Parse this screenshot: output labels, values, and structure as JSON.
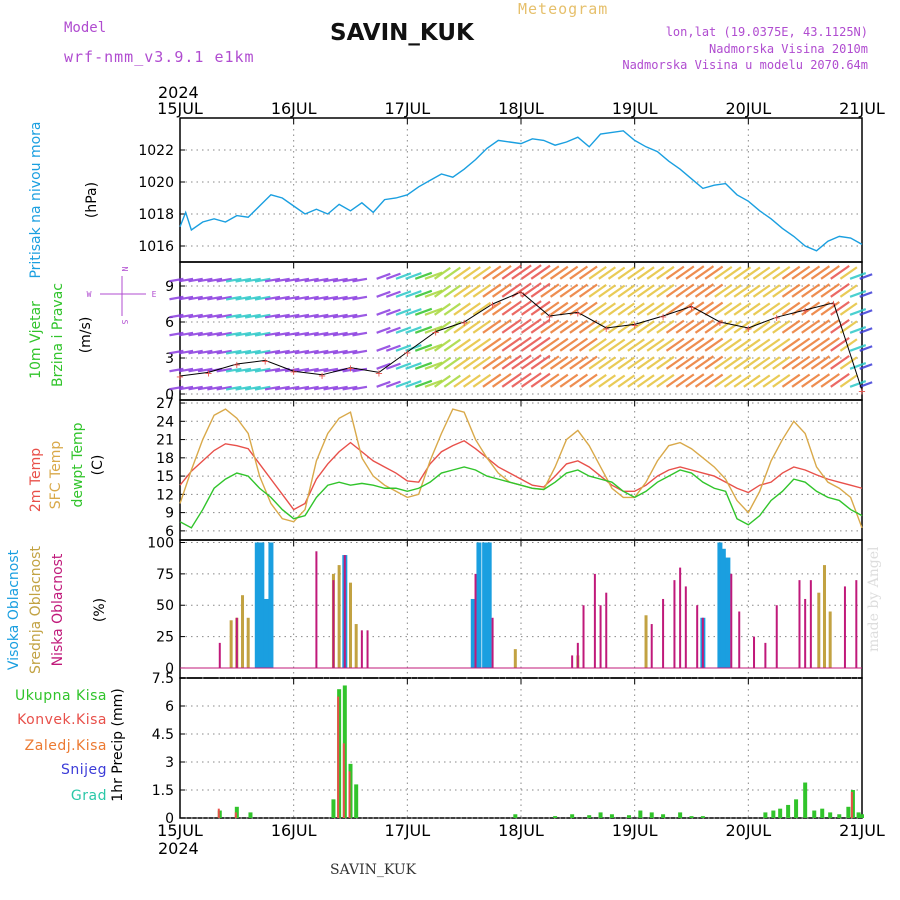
{
  "header": {
    "model_label": "Model",
    "model_run": "wrf-nmm_v3.9.1 e1km",
    "station": "SAVIN_KUK",
    "meteogram": "Meteogram",
    "lonlat": "lon,lat (19.0375E, 43.1125N)",
    "elevation": "Nadmorska Visina 2010m",
    "model_elevation": "Nadmorska Visina u modelu 2070.64m"
  },
  "footer": {
    "station": "SAVIN_KUK",
    "credit": "made by Angel"
  },
  "colors": {
    "pressure": "#1a9fe0",
    "t2m": "#e8504a",
    "tsfc": "#d9a94a",
    "dewpoint": "#31c42b",
    "cloud_high": "#1a9fe0",
    "cloud_mid": "#c2a242",
    "cloud_low": "#c0197a",
    "precip_total": "#31c42b",
    "precip_conv": "#e8504a",
    "precip_frozen": "#ec7a32",
    "snow": "#3c3cd8",
    "hail": "#2bc8a8",
    "model": "#b04cd0",
    "meteogram": "#e6c06c"
  },
  "time_axis": {
    "year": "2024",
    "ticks": [
      "15JUL",
      "16JUL",
      "17JUL",
      "18JUL",
      "19JUL",
      "20JUL",
      "21JUL"
    ]
  },
  "chart_data": [
    {
      "type": "line",
      "panel": "pressure",
      "ylabel": "Pritisak na nivou mora",
      "unit": "(hPa)",
      "ylim": [
        1015,
        1024
      ],
      "yticks": [
        "1016",
        "1018",
        "1020",
        "1022"
      ],
      "x_day": [
        0.0,
        0.05,
        0.1,
        0.2,
        0.3,
        0.4,
        0.5,
        0.6,
        0.7,
        0.8,
        0.9,
        1.0,
        1.1,
        1.2,
        1.3,
        1.4,
        1.5,
        1.6,
        1.7,
        1.8,
        1.9,
        2.0,
        2.1,
        2.2,
        2.3,
        2.4,
        2.5,
        2.6,
        2.7,
        2.8,
        2.9,
        3.0,
        3.1,
        3.2,
        3.3,
        3.4,
        3.5,
        3.6,
        3.7,
        3.8,
        3.9,
        4.0,
        4.1,
        4.2,
        4.3,
        4.4,
        4.5,
        4.6,
        4.7,
        4.8,
        4.9,
        5.0,
        5.1,
        5.2,
        5.3,
        5.4,
        5.5,
        5.6,
        5.7,
        5.8,
        5.9,
        6.0
      ],
      "values": [
        1017.2,
        1018.1,
        1017.0,
        1017.5,
        1017.7,
        1017.5,
        1017.9,
        1017.8,
        1018.5,
        1019.2,
        1019.0,
        1018.5,
        1018.0,
        1018.3,
        1018.0,
        1018.6,
        1018.2,
        1018.7,
        1018.1,
        1018.9,
        1019.0,
        1019.2,
        1019.7,
        1020.1,
        1020.5,
        1020.3,
        1020.8,
        1021.4,
        1022.1,
        1022.6,
        1022.5,
        1022.4,
        1022.7,
        1022.6,
        1022.3,
        1022.5,
        1022.8,
        1022.2,
        1023.0,
        1023.1,
        1023.2,
        1022.6,
        1022.2,
        1021.9,
        1021.3,
        1020.8,
        1020.2,
        1019.6,
        1019.8,
        1019.9,
        1019.2,
        1018.8,
        1018.2,
        1017.7,
        1017.1,
        1016.6,
        1016.0,
        1015.7,
        1016.3,
        1016.6,
        1016.5,
        1016.1
      ]
    },
    {
      "type": "scatter",
      "panel": "wind",
      "ylabel": "10m Vjetar",
      "ylabel2": "Brzina i Pravac",
      "unit": "(m/s)",
      "ylim": [
        -0.5,
        11
      ],
      "yticks": [
        "0",
        "3",
        "6",
        "9"
      ],
      "compass": [
        "N",
        "W",
        "E",
        "S"
      ],
      "x_day": [
        0.0,
        0.25,
        0.5,
        0.75,
        1.0,
        1.25,
        1.5,
        1.75,
        2.0,
        2.25,
        2.5,
        2.75,
        3.0,
        3.25,
        3.5,
        3.75,
        4.0,
        4.25,
        4.5,
        4.75,
        5.0,
        5.25,
        5.5,
        5.75,
        6.0
      ],
      "values": [
        1.5,
        1.8,
        2.5,
        2.8,
        1.9,
        1.6,
        2.2,
        1.8,
        3.5,
        5.2,
        6.0,
        7.5,
        8.5,
        6.5,
        6.8,
        5.5,
        5.8,
        6.5,
        7.3,
        6.0,
        5.5,
        6.4,
        7.0,
        7.6,
        0.3
      ]
    },
    {
      "type": "line",
      "panel": "temperature",
      "ylabel": "2m Temp",
      "ylabel2": "SFC Temp",
      "ylabel3": "dewpt Temp",
      "unit": "(C)",
      "ylim": [
        4.5,
        27.5
      ],
      "yticks": [
        "6",
        "9",
        "12",
        "15",
        "18",
        "21",
        "24",
        "27"
      ],
      "x_day": [
        0.0,
        0.1,
        0.2,
        0.3,
        0.4,
        0.5,
        0.6,
        0.7,
        0.8,
        0.9,
        1.0,
        1.1,
        1.2,
        1.3,
        1.4,
        1.5,
        1.6,
        1.7,
        1.8,
        1.9,
        2.0,
        2.1,
        2.2,
        2.3,
        2.4,
        2.5,
        2.6,
        2.7,
        2.8,
        2.9,
        3.0,
        3.1,
        3.2,
        3.3,
        3.4,
        3.5,
        3.6,
        3.7,
        3.8,
        3.9,
        4.0,
        4.1,
        4.2,
        4.3,
        4.4,
        4.5,
        4.6,
        4.7,
        4.8,
        4.9,
        5.0,
        5.1,
        5.2,
        5.3,
        5.4,
        5.5,
        5.6,
        5.7,
        5.8,
        5.9,
        6.0
      ],
      "series": [
        {
          "name": "2m Temp",
          "values": [
            13.5,
            15.8,
            17.5,
            19.2,
            20.3,
            20.0,
            19.5,
            17.0,
            14.5,
            12.0,
            9.5,
            10.5,
            14.5,
            17.0,
            19.0,
            20.5,
            19.0,
            17.5,
            16.5,
            15.5,
            14.2,
            14.0,
            17.0,
            19.0,
            20.0,
            20.8,
            19.5,
            18.0,
            16.5,
            15.5,
            14.5,
            13.5,
            13.2,
            15.0,
            17.0,
            17.5,
            16.5,
            15.0,
            13.5,
            12.5,
            12.5,
            13.5,
            15.0,
            16.0,
            16.5,
            16.0,
            15.5,
            15.0,
            14.0,
            13.0,
            12.3,
            13.5,
            14.0,
            15.5,
            16.5,
            16.0,
            15.2,
            14.5,
            14.0,
            13.5,
            13.0
          ]
        },
        {
          "name": "SFC Temp",
          "values": [
            10.5,
            16.0,
            21.0,
            25.0,
            26.0,
            24.5,
            22.0,
            15.0,
            10.5,
            8.0,
            7.5,
            9.5,
            17.5,
            22.0,
            24.5,
            25.5,
            18.0,
            15.0,
            13.5,
            12.5,
            11.5,
            12.0,
            17.5,
            22.0,
            26.0,
            25.5,
            21.0,
            18.0,
            15.5,
            14.0,
            13.5,
            13.0,
            12.8,
            16.5,
            21.0,
            22.5,
            20.0,
            16.5,
            13.0,
            11.5,
            11.5,
            14.0,
            17.5,
            20.0,
            20.5,
            19.5,
            18.0,
            16.5,
            14.5,
            11.0,
            9.0,
            12.5,
            17.5,
            21.0,
            24.0,
            22.0,
            16.5,
            14.0,
            13.0,
            11.5,
            6.5
          ]
        },
        {
          "name": "dewpt Temp",
          "values": [
            7.5,
            6.5,
            9.5,
            13.0,
            14.5,
            15.5,
            15.0,
            13.0,
            11.5,
            9.5,
            8.0,
            8.5,
            11.5,
            13.5,
            14.0,
            13.5,
            13.8,
            13.5,
            13.0,
            13.0,
            12.5,
            13.0,
            14.0,
            15.5,
            16.0,
            16.5,
            16.0,
            15.0,
            14.5,
            14.0,
            13.5,
            13.0,
            12.8,
            14.0,
            15.5,
            16.0,
            15.0,
            14.5,
            14.0,
            12.5,
            11.5,
            12.5,
            14.0,
            15.0,
            16.0,
            15.5,
            14.0,
            13.0,
            12.5,
            8.0,
            7.0,
            8.5,
            11.0,
            12.5,
            14.5,
            14.0,
            12.5,
            11.5,
            11.0,
            9.5,
            8.5
          ]
        }
      ]
    },
    {
      "type": "bar",
      "panel": "cloud",
      "ylabel": "Visoka Oblacnost",
      "ylabel2": "Srednja Oblacnost",
      "ylabel3": "Niska Oblacnost",
      "unit": "(%)",
      "ylim": [
        0,
        100
      ],
      "yticks": [
        "0",
        "25",
        "50",
        "75",
        "100"
      ],
      "series": [
        {
          "name": "Visoka Oblacnost",
          "x_day": [
            0.68,
            0.72,
            0.76,
            0.8,
            0.84,
            1.25,
            1.45,
            2.48,
            2.55,
            2.58,
            2.63,
            2.68,
            2.72,
            3.83,
            4.6,
            4.7,
            4.75,
            4.78,
            4.82,
            4.9,
            5.42,
            5.7,
            5.74,
            5.78
          ],
          "values": [
            100,
            100,
            55,
            100,
            0,
            0,
            90,
            0,
            0,
            55,
            100,
            100,
            100,
            0,
            40,
            0,
            100,
            95,
            88,
            0,
            0,
            0,
            0,
            0
          ]
        },
        {
          "name": "Srednja Oblacnost",
          "x_day": [
            0.45,
            0.5,
            0.55,
            0.6,
            1.35,
            1.4,
            1.5,
            1.55,
            2.95,
            3.5,
            4.1,
            5.62,
            5.67,
            5.72
          ],
          "values": [
            38,
            40,
            58,
            40,
            75,
            82,
            68,
            35,
            15,
            10,
            42,
            60,
            82,
            45
          ]
        },
        {
          "name": "Niska Oblacnost",
          "x_day": [
            0.35,
            0.5,
            1.2,
            1.35,
            1.45,
            1.6,
            1.65,
            2.6,
            2.75,
            3.45,
            3.5,
            3.55,
            3.65,
            3.7,
            3.75,
            4.15,
            4.25,
            4.35,
            4.4,
            4.45,
            4.55,
            4.6,
            4.85,
            4.92,
            5.05,
            5.15,
            5.25,
            5.45,
            5.5,
            5.55,
            5.85,
            5.95
          ],
          "values": [
            20,
            40,
            93,
            70,
            90,
            30,
            30,
            75,
            40,
            10,
            20,
            50,
            75,
            50,
            60,
            35,
            55,
            70,
            80,
            65,
            50,
            40,
            75,
            45,
            25,
            20,
            50,
            70,
            55,
            70,
            65,
            70
          ]
        }
      ]
    },
    {
      "type": "bar",
      "panel": "precipitation",
      "ylabel": "1hr Precip",
      "unit": "(mm)",
      "ylim": [
        0,
        7.5
      ],
      "yticks": [
        "0",
        "1.5",
        "3",
        "4.5",
        "6",
        "7.5"
      ],
      "legend": [
        "Ukupna Kisa",
        "Konvek.Kisa",
        "Zaledj.Kisa",
        "Snijeg",
        "Grad"
      ],
      "series": [
        {
          "name": "Ukupna Kisa",
          "x_day": [
            0.35,
            0.5,
            0.62,
            1.35,
            1.4,
            1.45,
            1.5,
            1.55,
            2.95,
            3.3,
            3.45,
            3.6,
            3.7,
            3.8,
            3.95,
            4.05,
            4.15,
            4.25,
            4.4,
            4.5,
            4.6,
            5.15,
            5.22,
            5.28,
            5.35,
            5.42,
            5.5,
            5.58,
            5.65,
            5.72,
            5.8,
            5.88,
            5.92,
            5.97,
            6.0
          ],
          "values": [
            0.4,
            0.6,
            0.3,
            1.0,
            6.9,
            7.1,
            2.9,
            1.8,
            0.2,
            0.1,
            0.2,
            0.15,
            0.3,
            0.2,
            0.15,
            0.4,
            0.3,
            0.2,
            0.3,
            0.1,
            0.1,
            0.3,
            0.4,
            0.5,
            0.7,
            1.0,
            1.9,
            0.4,
            0.5,
            0.3,
            0.2,
            0.6,
            1.5,
            0.3,
            0.2
          ]
        },
        {
          "name": "Konvek.Kisa",
          "x_day": [
            0.35,
            0.5,
            1.4,
            1.45,
            1.5,
            5.92
          ],
          "values": [
            0.5,
            0.3,
            6.5,
            4.0,
            2.5,
            1.4
          ]
        }
      ]
    }
  ]
}
